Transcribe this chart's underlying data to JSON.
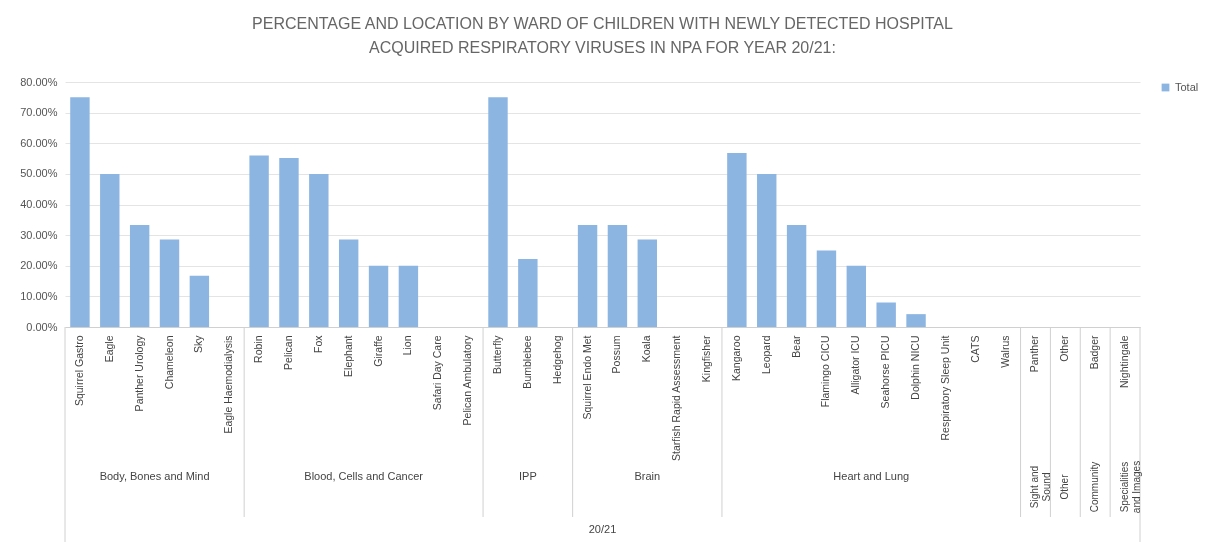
{
  "chart_data": {
    "type": "bar",
    "title": "PERCENTAGE AND LOCATION BY WARD OF CHILDREN WITH NEWLY DETECTED HOSPITAL ACQUIRED RESPIRATORY VIRUSES IN NPA FOR YEAR 20/21:",
    "categories": [
      "Squirrel Gastro",
      "Eagle",
      "Panther Urology",
      "Chameleon",
      "Sky",
      "Eagle Haemodialysis",
      "Robin",
      "Pelican",
      "Fox",
      "Elephant",
      "Giraffe",
      "Lion",
      "Safari Day Care",
      "Pelican Ambulatory",
      "Butterfly",
      "Bumblebee",
      "Hedgehog",
      "Squirrel Endo Met",
      "Possum",
      "Koala",
      "Starfish Rapid Assessment",
      "Kingfisher",
      "Kangaroo",
      "Leopard",
      "Bear",
      "Flamingo CICU",
      "Alligator ICU",
      "Seahorse PICU",
      "Dolphin NICU",
      "Respiratory Sleep Unit",
      "CATS",
      "Walrus",
      "Panther",
      "Other",
      "Badger",
      "Nightingale"
    ],
    "series": [
      {
        "name": "Total",
        "color": "#8cb5e1",
        "values": [
          75,
          50,
          33.3,
          28.6,
          16.7,
          0,
          56,
          55.2,
          50,
          28.6,
          20,
          20,
          0,
          0,
          75,
          22.2,
          0,
          33.3,
          33.3,
          28.6,
          0,
          0,
          56.8,
          50,
          33.3,
          25,
          20,
          8,
          4.2,
          0,
          0,
          0,
          0,
          0,
          0,
          0
        ]
      }
    ],
    "ylim": [
      0,
      80
    ],
    "yticks": [
      {
        "value": 0,
        "label": "0.00%"
      },
      {
        "value": 10,
        "label": "10.00%"
      },
      {
        "value": 20,
        "label": "20.00%"
      },
      {
        "value": 30,
        "label": "30.00%"
      },
      {
        "value": 40,
        "label": "40.00%"
      },
      {
        "value": 50,
        "label": "50.00%"
      },
      {
        "value": 60,
        "label": "60.00%"
      },
      {
        "value": 70,
        "label": "70.00%"
      },
      {
        "value": 80,
        "label": "80.00%"
      }
    ],
    "grid": "y",
    "legend": "right",
    "annotations": [
      "Body, Bones and Mind",
      "Blood, Cells and Cancer",
      "IPP",
      "Brain",
      "Heart and Lung",
      "Sight and Sound",
      "Other",
      "Community",
      "Specialities and Images",
      "20/21"
    ]
  }
}
